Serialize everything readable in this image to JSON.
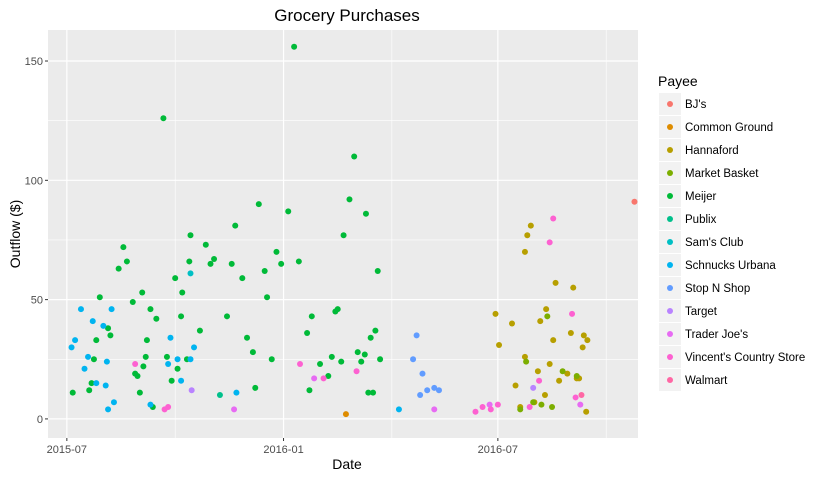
{
  "chart_data": {
    "type": "scatter",
    "title": "Grocery Purchases",
    "xlabel": "Date",
    "ylabel": "Outflow ($)",
    "x_ticks": [
      "2015-07",
      "2016-01",
      "2016-07"
    ],
    "y_ticks": [
      0,
      50,
      100,
      150
    ],
    "xlim": [
      "2015-06-15",
      "2016-10-28"
    ],
    "ylim": [
      -8,
      163
    ],
    "grid": true,
    "legend": {
      "title": "Payee",
      "position": "right"
    },
    "series": [
      {
        "name": "BJ's",
        "color": "#F8766D",
        "points": [
          [
            "2016-10-25",
            91
          ]
        ]
      },
      {
        "name": "Common Ground",
        "color": "#DE8C00",
        "points": [
          [
            "2016-02-23",
            2
          ]
        ]
      },
      {
        "name": "Hannaford",
        "color": "#B79F00",
        "points": [
          [
            "2016-06-29",
            44
          ],
          [
            "2016-07-02",
            31
          ],
          [
            "2016-07-13",
            40
          ],
          [
            "2016-07-16",
            14
          ],
          [
            "2016-07-20",
            5
          ],
          [
            "2016-07-24",
            26
          ],
          [
            "2016-07-24",
            70
          ],
          [
            "2016-07-26",
            77
          ],
          [
            "2016-07-29",
            81
          ],
          [
            "2016-08-01",
            7
          ],
          [
            "2016-08-04",
            20
          ],
          [
            "2016-08-06",
            41
          ],
          [
            "2016-08-10",
            10
          ],
          [
            "2016-08-11",
            46
          ],
          [
            "2016-08-14",
            23
          ],
          [
            "2016-08-17",
            33
          ],
          [
            "2016-08-19",
            57
          ],
          [
            "2016-08-22",
            16
          ],
          [
            "2016-08-29",
            19
          ],
          [
            "2016-09-01",
            36
          ],
          [
            "2016-09-03",
            55
          ],
          [
            "2016-09-06",
            17
          ],
          [
            "2016-09-08",
            17
          ],
          [
            "2016-09-11",
            30
          ],
          [
            "2016-09-12",
            35
          ],
          [
            "2016-09-14",
            3
          ],
          [
            "2016-09-15",
            33
          ]
        ]
      },
      {
        "name": "Market Basket",
        "color": "#7CAE00",
        "points": [
          [
            "2016-07-20",
            4
          ],
          [
            "2016-07-25",
            24
          ],
          [
            "2016-07-31",
            7
          ],
          [
            "2016-08-07",
            6
          ],
          [
            "2016-08-12",
            43
          ],
          [
            "2016-08-16",
            5
          ],
          [
            "2016-08-25",
            20
          ],
          [
            "2016-09-06",
            18
          ]
        ]
      },
      {
        "name": "Meijer",
        "color": "#00BA38",
        "points": [
          [
            "2015-07-06",
            11
          ],
          [
            "2015-07-20",
            12
          ],
          [
            "2015-07-22",
            15
          ],
          [
            "2015-07-24",
            25
          ],
          [
            "2015-07-26",
            33
          ],
          [
            "2015-07-29",
            51
          ],
          [
            "2015-08-05",
            38
          ],
          [
            "2015-08-07",
            35
          ],
          [
            "2015-08-14",
            63
          ],
          [
            "2015-08-18",
            72
          ],
          [
            "2015-08-21",
            66
          ],
          [
            "2015-08-26",
            49
          ],
          [
            "2015-08-28",
            19
          ],
          [
            "2015-08-30",
            18
          ],
          [
            "2015-09-01",
            11
          ],
          [
            "2015-09-03",
            53
          ],
          [
            "2015-09-04",
            22
          ],
          [
            "2015-09-06",
            26
          ],
          [
            "2015-09-07",
            33
          ],
          [
            "2015-09-10",
            46
          ],
          [
            "2015-09-12",
            5
          ],
          [
            "2015-09-15",
            42
          ],
          [
            "2015-09-21",
            126
          ],
          [
            "2015-09-24",
            26
          ],
          [
            "2015-09-28",
            16
          ],
          [
            "2015-10-01",
            59
          ],
          [
            "2015-10-03",
            21
          ],
          [
            "2015-10-06",
            43
          ],
          [
            "2015-10-07",
            53
          ],
          [
            "2015-10-11",
            25
          ],
          [
            "2015-10-13",
            66
          ],
          [
            "2015-10-14",
            77
          ],
          [
            "2015-10-22",
            37
          ],
          [
            "2015-10-27",
            73
          ],
          [
            "2015-10-31",
            65
          ],
          [
            "2015-11-03",
            67
          ],
          [
            "2015-11-14",
            43
          ],
          [
            "2015-11-18",
            65
          ],
          [
            "2015-11-21",
            81
          ],
          [
            "2015-11-27",
            59
          ],
          [
            "2015-12-01",
            34
          ],
          [
            "2015-12-06",
            28
          ],
          [
            "2015-12-08",
            13
          ],
          [
            "2015-12-11",
            90
          ],
          [
            "2015-12-16",
            62
          ],
          [
            "2015-12-18",
            51
          ],
          [
            "2015-12-22",
            25
          ],
          [
            "2015-12-26",
            70
          ],
          [
            "2015-12-30",
            65
          ],
          [
            "2016-01-05",
            87
          ],
          [
            "2016-01-10",
            156
          ],
          [
            "2016-01-14",
            66
          ],
          [
            "2016-01-21",
            36
          ],
          [
            "2016-01-23",
            12
          ],
          [
            "2016-01-25",
            43
          ],
          [
            "2016-02-01",
            23
          ],
          [
            "2016-02-08",
            18
          ],
          [
            "2016-02-11",
            26
          ],
          [
            "2016-02-14",
            45
          ],
          [
            "2016-02-16",
            46
          ],
          [
            "2016-02-19",
            24
          ],
          [
            "2016-02-21",
            77
          ],
          [
            "2016-02-26",
            92
          ],
          [
            "2016-03-01",
            110
          ],
          [
            "2016-03-04",
            28
          ],
          [
            "2016-03-07",
            24
          ],
          [
            "2016-03-10",
            27
          ],
          [
            "2016-03-11",
            86
          ],
          [
            "2016-03-13",
            11
          ],
          [
            "2016-03-15",
            34
          ],
          [
            "2016-03-17",
            11
          ],
          [
            "2016-03-19",
            37
          ],
          [
            "2016-03-21",
            62
          ],
          [
            "2016-03-23",
            25
          ]
        ]
      },
      {
        "name": "Publix",
        "color": "#00C08B",
        "points": [
          [
            "2015-11-08",
            10
          ]
        ]
      },
      {
        "name": "Sam's Club",
        "color": "#00BFC4",
        "points": [
          [
            "2015-10-14",
            61
          ]
        ]
      },
      {
        "name": "Schnucks Urbana",
        "color": "#00B4F0",
        "points": [
          [
            "2015-07-05",
            30
          ],
          [
            "2015-07-08",
            33
          ],
          [
            "2015-07-13",
            46
          ],
          [
            "2015-07-16",
            21
          ],
          [
            "2015-07-19",
            26
          ],
          [
            "2015-07-23",
            41
          ],
          [
            "2015-07-26",
            15
          ],
          [
            "2015-08-01",
            39
          ],
          [
            "2015-08-03",
            14
          ],
          [
            "2015-08-04",
            24
          ],
          [
            "2015-08-05",
            4
          ],
          [
            "2015-08-08",
            46
          ],
          [
            "2015-08-10",
            7
          ],
          [
            "2015-09-10",
            6
          ],
          [
            "2015-09-25",
            23
          ],
          [
            "2015-09-27",
            34
          ],
          [
            "2015-10-03",
            25
          ],
          [
            "2015-10-06",
            16
          ],
          [
            "2015-10-14",
            25
          ],
          [
            "2015-10-17",
            30
          ],
          [
            "2015-11-22",
            11
          ],
          [
            "2016-04-08",
            4
          ]
        ]
      },
      {
        "name": "Stop N Shop",
        "color": "#619CFF",
        "points": [
          [
            "2016-04-20",
            25
          ],
          [
            "2016-04-23",
            35
          ],
          [
            "2016-04-26",
            10
          ],
          [
            "2016-04-28",
            19
          ],
          [
            "2016-05-02",
            12
          ],
          [
            "2016-05-08",
            13
          ],
          [
            "2016-05-12",
            12
          ]
        ]
      },
      {
        "name": "Target",
        "color": "#B983FF",
        "points": [
          [
            "2015-10-15",
            12
          ],
          [
            "2016-07-31",
            13
          ]
        ]
      },
      {
        "name": "Trader Joe's",
        "color": "#E76BF3",
        "points": [
          [
            "2015-11-20",
            4
          ],
          [
            "2016-01-27",
            17
          ],
          [
            "2016-05-08",
            4
          ],
          [
            "2016-06-24",
            6
          ],
          [
            "2016-09-09",
            6
          ]
        ]
      },
      {
        "name": "Vincent's Country Store",
        "color": "#FD61D1",
        "points": [
          [
            "2015-08-28",
            23
          ],
          [
            "2015-09-22",
            4
          ],
          [
            "2015-09-25",
            5
          ],
          [
            "2016-01-15",
            23
          ],
          [
            "2016-02-04",
            17
          ],
          [
            "2016-03-03",
            20
          ],
          [
            "2016-06-12",
            3
          ],
          [
            "2016-06-18",
            5
          ],
          [
            "2016-06-25",
            4
          ],
          [
            "2016-07-01",
            6
          ],
          [
            "2016-07-28",
            5
          ],
          [
            "2016-08-05",
            16
          ],
          [
            "2016-08-14",
            74
          ],
          [
            "2016-08-17",
            84
          ],
          [
            "2016-09-02",
            44
          ],
          [
            "2016-09-05",
            9
          ]
        ]
      },
      {
        "name": "Walmart",
        "color": "#FF67A4",
        "points": [
          [
            "2016-09-10",
            10
          ]
        ]
      }
    ]
  }
}
